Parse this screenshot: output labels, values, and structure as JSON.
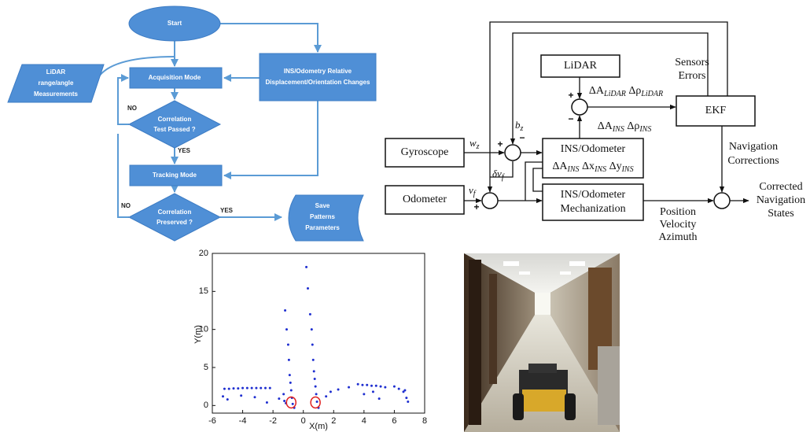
{
  "flowchart": {
    "start": "Start",
    "lidar": [
      "LiDAR",
      "range/angle",
      "Measurements"
    ],
    "acquisition": "Acquisition Mode",
    "ins": [
      "INS/Odometry Relative",
      "Displacement/Orientation Changes"
    ],
    "decision1": [
      "Correlation",
      "Test Passed ?"
    ],
    "decision1_no": "NO",
    "decision1_yes": "YES",
    "tracking": "Tracking Mode",
    "decision2": [
      "Correlation",
      "Preserved ?"
    ],
    "decision2_no": "NO",
    "decision2_yes": "YES",
    "save": [
      "Save",
      "Patterns",
      "Parameters"
    ]
  },
  "block_diagram": {
    "lidar": "LiDAR",
    "ekf": "EKF",
    "gyroscope": "Gyroscope",
    "ins_odometer": "INS/Odometer",
    "ins_deltas": [
      {
        "text": "ΔA"
      },
      {
        "sub": "INS"
      },
      {
        "text": " Δx"
      },
      {
        "sub": "INS"
      },
      {
        "text": " Δy"
      },
      {
        "sub": "INS"
      }
    ],
    "odometer": "Odometer",
    "mechanization": [
      "INS/Odometer",
      "Mechanization"
    ],
    "plus": "+",
    "minus": "−",
    "sensors_errors": [
      "Sensors",
      "Errors"
    ],
    "lidar_deltas": [
      {
        "text": "ΔA"
      },
      {
        "sub": "LiDAR"
      },
      {
        "text": " Δρ"
      },
      {
        "sub": "LiDAR"
      }
    ],
    "ins_errors": [
      {
        "text": "ΔA"
      },
      {
        "sub": "INS"
      },
      {
        "text": " Δρ"
      },
      {
        "sub": "INS"
      }
    ],
    "bz": [
      {
        "text": "b"
      },
      {
        "sub": "z"
      }
    ],
    "wz": [
      {
        "text": "w"
      },
      {
        "sub": "z"
      }
    ],
    "dvf": [
      {
        "text": "δv"
      },
      {
        "sub": "f"
      }
    ],
    "vf": [
      {
        "text": "v"
      },
      {
        "sub": "f"
      }
    ],
    "nav_corrections": [
      "Navigation",
      "Corrections"
    ],
    "corrected": [
      "Corrected",
      "Navigation",
      "States"
    ],
    "outputs": [
      "Position",
      "Velocity",
      "Azimuth"
    ]
  },
  "chart_data": {
    "type": "scatter",
    "xlabel": "X(m)",
    "ylabel": "Y(m)",
    "xlim": [
      -6,
      8
    ],
    "ylim": [
      -1,
      20
    ],
    "xticks": [
      -6,
      -4,
      -2,
      0,
      2,
      4,
      6,
      8
    ],
    "yticks": [
      0,
      5,
      10,
      15,
      20
    ],
    "color": "#1f2fd0",
    "x": [
      -5.2,
      -4.9,
      -4.6,
      -4.3,
      -4.0,
      -3.7,
      -3.4,
      -3.1,
      -2.8,
      -2.5,
      -2.2,
      -5.3,
      -5.0,
      -4.1,
      -3.2,
      -2.4,
      -1.6,
      -1.2,
      -1.1,
      -1.0,
      -0.95,
      -0.9,
      -0.85,
      -0.8,
      -0.75,
      -0.7,
      -1.3,
      -1.25,
      -1.15,
      -0.6,
      0.2,
      0.3,
      0.45,
      0.55,
      0.6,
      0.65,
      0.7,
      0.75,
      0.8,
      0.85,
      0.9,
      1.0,
      1.5,
      1.8,
      2.3,
      3.0,
      3.6,
      3.9,
      4.2,
      4.5,
      4.8,
      5.1,
      5.4,
      4.0,
      4.6,
      5.0,
      6.0,
      6.3,
      6.6,
      6.8,
      6.9,
      6.7
    ],
    "y": [
      2.2,
      2.2,
      2.25,
      2.25,
      2.3,
      2.3,
      2.3,
      2.3,
      2.3,
      2.3,
      2.3,
      1.2,
      0.8,
      1.3,
      1.1,
      0.4,
      0.9,
      12.5,
      10,
      8,
      6,
      4,
      3,
      2,
      1,
      0.2,
      1.5,
      0.6,
      0.3,
      -0.3,
      18.2,
      15.4,
      12,
      10,
      8,
      6,
      4.5,
      3.5,
      2.5,
      1.5,
      0.5,
      -0.3,
      1.2,
      1.8,
      2.1,
      2.4,
      2.8,
      2.7,
      2.7,
      2.6,
      2.6,
      2.5,
      2.4,
      1.5,
      1.8,
      0.9,
      2.5,
      2.2,
      1.8,
      1.0,
      0.5,
      2.0
    ],
    "highlights": [
      {
        "x": -0.8,
        "y": 0.4
      },
      {
        "x": 0.8,
        "y": 0.4
      }
    ],
    "highlight_color": "#e02020"
  }
}
